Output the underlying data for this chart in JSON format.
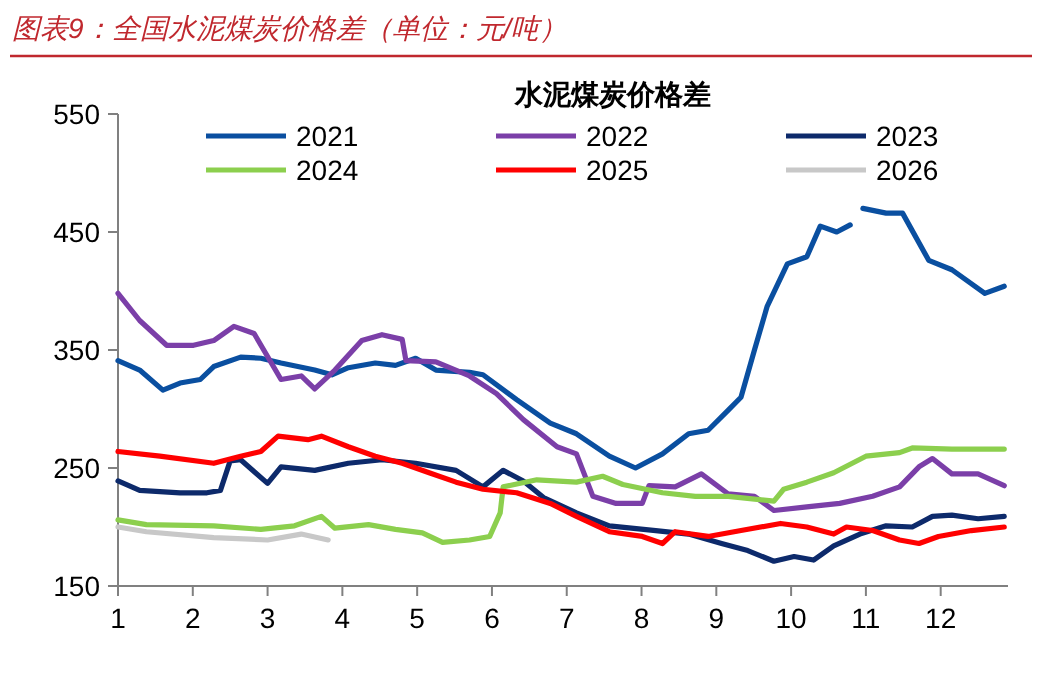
{
  "chart_data": {
    "type": "line",
    "title": "图表9：全国水泥煤炭价格差（单位：元/吨）",
    "legend_title": "水泥煤炭价格差",
    "legend": "top",
    "xlim": [
      1,
      12.9
    ],
    "xticks": [
      1,
      2,
      3,
      4,
      5,
      6,
      7,
      8,
      9,
      10,
      11,
      12
    ],
    "ylim": [
      150,
      550
    ],
    "yticks": [
      150,
      250,
      350,
      450,
      550
    ],
    "series": [
      {
        "name": "2021",
        "color": "#0a4fa0",
        "x": [
          1,
          1.29,
          1.6,
          1.83,
          2.1,
          2.28,
          2.64,
          2.91,
          3.18,
          3.63,
          3.86,
          4.08,
          4.44,
          4.71,
          4.98,
          5.25,
          5.7,
          5.88,
          6.33,
          6.78,
          7.13,
          7.57,
          7.92,
          8.28,
          8.63,
          8.89,
          9.16,
          9.33,
          9.51,
          9.68,
          9.95,
          10.21,
          10.39,
          10.61,
          10.79,
          10.9,
          10.96,
          11.27,
          11.49,
          11.84,
          12.15,
          12.59,
          12.85
        ],
        "values": [
          341,
          333,
          316,
          322,
          325,
          336,
          344,
          343,
          339,
          333,
          329,
          335,
          339,
          337,
          343,
          333,
          331,
          329,
          308,
          288,
          279,
          260,
          250,
          262,
          279,
          282,
          299,
          310,
          350,
          387,
          423,
          429,
          455,
          450,
          456,
          null,
          470,
          466,
          466,
          426,
          418,
          398,
          404
        ]
      },
      {
        "name": "2022",
        "color": "#7b3fa8",
        "x": [
          1,
          1.29,
          1.65,
          2.01,
          2.28,
          2.55,
          2.82,
          3.18,
          3.45,
          3.63,
          3.9,
          4.26,
          4.53,
          4.8,
          4.85,
          5.25,
          5.7,
          6.06,
          6.42,
          6.87,
          7.13,
          7.35,
          7.66,
          8.01,
          8.1,
          8.45,
          8.8,
          9.16,
          9.51,
          9.77,
          10.21,
          10.65,
          11.09,
          11.45,
          11.71,
          11.89,
          12.15,
          12.5,
          12.85
        ],
        "values": [
          398,
          375,
          354,
          354,
          358,
          370,
          364,
          325,
          328,
          317,
          333,
          358,
          363,
          359,
          341,
          340,
          328,
          313,
          291,
          268,
          262,
          226,
          220,
          220,
          235,
          234,
          245,
          228,
          226,
          214,
          217,
          220,
          226,
          234,
          251,
          258,
          245,
          245,
          235
        ]
      },
      {
        "name": "2023",
        "color": "#0d2a6b",
        "x": [
          1,
          1.29,
          1.83,
          2.19,
          2.37,
          2.5,
          2.64,
          3.0,
          3.18,
          3.63,
          4.08,
          4.53,
          4.98,
          5.52,
          5.88,
          6.15,
          6.42,
          6.69,
          7.13,
          7.57,
          8.19,
          8.63,
          9.07,
          9.42,
          9.77,
          10.04,
          10.3,
          10.57,
          10.92,
          11.27,
          11.62,
          11.89,
          12.15,
          12.5,
          12.85
        ],
        "values": [
          239,
          231,
          229,
          229,
          231,
          256,
          257,
          237,
          251,
          248,
          254,
          257,
          254,
          248,
          234,
          248,
          239,
          225,
          212,
          201,
          197,
          194,
          186,
          180,
          171,
          175,
          172,
          184,
          194,
          201,
          200,
          209,
          210,
          207,
          209
        ]
      },
      {
        "name": "2024",
        "color": "#8ccf4e",
        "x": [
          1,
          1.38,
          2.28,
          2.91,
          3.36,
          3.72,
          3.9,
          4.35,
          4.71,
          5.07,
          5.34,
          5.7,
          5.97,
          6.11,
          6.15,
          6.6,
          7.13,
          7.48,
          7.75,
          8.28,
          8.72,
          9.16,
          9.77,
          9.9,
          10.21,
          10.57,
          11.0,
          11.45,
          11.62,
          12.15,
          12.85
        ],
        "values": [
          206,
          202,
          201,
          198,
          201,
          209,
          199,
          202,
          198,
          195,
          187,
          189,
          192,
          212,
          234,
          240,
          238,
          243,
          236,
          229,
          226,
          226,
          222,
          232,
          238,
          246,
          260,
          263,
          267,
          266,
          266
        ]
      },
      {
        "name": "2025",
        "color": "#ff0000",
        "x": [
          1,
          1.56,
          2.28,
          2.64,
          2.91,
          3.14,
          3.54,
          3.72,
          4.08,
          4.44,
          4.8,
          5.16,
          5.52,
          5.88,
          6.33,
          6.78,
          7.13,
          7.57,
          8.01,
          8.28,
          8.45,
          8.89,
          9.33,
          9.86,
          10.21,
          10.57,
          10.74,
          11.09,
          11.45,
          11.71,
          11.97,
          12.41,
          12.85
        ],
        "values": [
          264,
          260,
          254,
          260,
          264,
          277,
          274,
          277,
          268,
          260,
          254,
          246,
          238,
          232,
          229,
          220,
          209,
          196,
          192,
          186,
          196,
          192,
          197,
          203,
          200,
          194,
          200,
          197,
          189,
          186,
          192,
          197,
          200
        ]
      },
      {
        "name": "2026",
        "color": "#c8c8c8",
        "x": [
          1,
          1.38,
          2.28,
          3.0,
          3.45,
          3.81
        ],
        "values": [
          200,
          196,
          191,
          189,
          194,
          189
        ]
      }
    ]
  }
}
